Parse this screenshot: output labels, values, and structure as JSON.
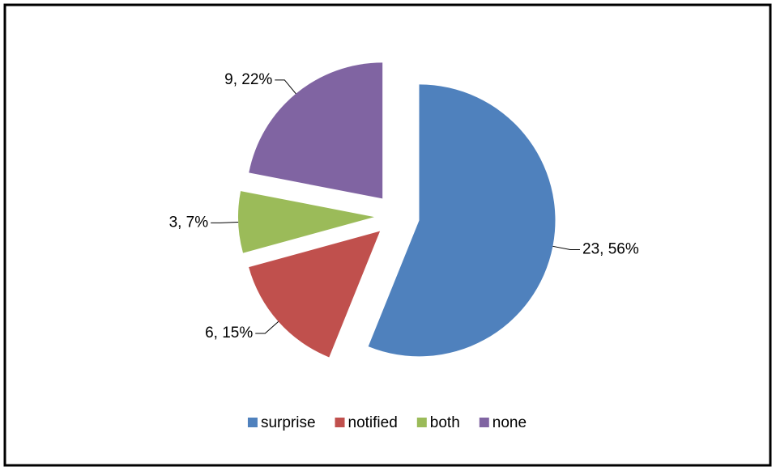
{
  "chart_data": {
    "type": "pie",
    "categories": [
      "surprise",
      "notified",
      "both",
      "none"
    ],
    "values": [
      23,
      6,
      3,
      9
    ],
    "value_labels": [
      "23, 56%",
      "6, 15%",
      "3, 7%",
      "9, 22%"
    ],
    "colors": [
      "#4f81bd",
      "#c0504d",
      "#9bbb59",
      "#8064a2"
    ],
    "legend": "bottom"
  }
}
